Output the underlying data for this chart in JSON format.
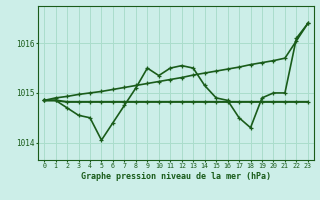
{
  "title": "Graphe pression niveau de la mer (hPa)",
  "bg_color": "#cceee8",
  "grid_color": "#aaddcc",
  "line_color": "#1a5c1a",
  "xlim": [
    -0.5,
    23.5
  ],
  "ylim": [
    1013.65,
    1016.75
  ],
  "yticks": [
    1014,
    1015,
    1016
  ],
  "xticks": [
    0,
    1,
    2,
    3,
    4,
    5,
    6,
    7,
    8,
    9,
    10,
    11,
    12,
    13,
    14,
    15,
    16,
    17,
    18,
    19,
    20,
    21,
    22,
    23
  ],
  "series": [
    {
      "x": [
        0,
        1,
        2,
        3,
        4,
        5,
        6,
        7,
        8,
        9,
        10,
        11,
        12,
        13,
        14,
        15,
        16,
        17,
        18,
        19,
        20,
        21,
        22,
        23
      ],
      "y": [
        1014.85,
        1014.85,
        1014.7,
        1014.55,
        1014.5,
        1014.05,
        1014.4,
        1014.75,
        1015.1,
        1015.5,
        1015.35,
        1015.5,
        1015.55,
        1015.5,
        1015.15,
        1014.9,
        1014.85,
        1014.5,
        1014.3,
        1014.9,
        1015.0,
        1015.0,
        1016.1,
        1016.4
      ],
      "lw": 1.2
    },
    {
      "x": [
        0,
        1,
        2,
        3,
        4,
        5,
        6,
        7,
        8,
        9,
        10,
        11,
        12,
        13,
        14,
        15,
        16,
        17,
        18,
        19,
        20,
        21,
        22,
        23
      ],
      "y": [
        1014.85,
        1014.85,
        1014.82,
        1014.82,
        1014.82,
        1014.82,
        1014.82,
        1014.82,
        1014.82,
        1014.82,
        1014.82,
        1014.82,
        1014.82,
        1014.82,
        1014.82,
        1014.82,
        1014.82,
        1014.82,
        1014.82,
        1014.82,
        1014.82,
        1014.82,
        1014.82,
        1014.82
      ],
      "lw": 1.5
    },
    {
      "x": [
        0,
        1,
        2,
        3,
        4,
        5,
        6,
        7,
        8,
        9,
        10,
        11,
        12,
        13,
        14,
        15,
        16,
        17,
        18,
        19,
        20,
        21,
        22,
        23
      ],
      "y": [
        1014.85,
        1014.9,
        1014.93,
        1014.97,
        1015.0,
        1015.03,
        1015.07,
        1015.11,
        1015.15,
        1015.19,
        1015.23,
        1015.27,
        1015.31,
        1015.36,
        1015.4,
        1015.44,
        1015.48,
        1015.52,
        1015.57,
        1015.61,
        1015.65,
        1015.7,
        1016.05,
        1016.4
      ],
      "lw": 1.2
    }
  ]
}
